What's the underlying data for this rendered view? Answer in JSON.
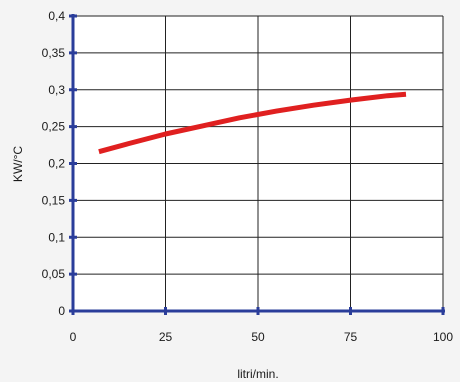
{
  "chart_data": {
    "type": "line",
    "title": "",
    "xlabel": "litri/min.",
    "ylabel": "KW/°C",
    "xlim": [
      0,
      100
    ],
    "ylim": [
      0,
      0.4
    ],
    "x_ticks": [
      0,
      25,
      50,
      75,
      100
    ],
    "x_tick_labels": [
      "0",
      "25",
      "50",
      "75",
      "100"
    ],
    "y_ticks": [
      0,
      0.05,
      0.1,
      0.15,
      0.2,
      0.25,
      0.3,
      0.35,
      0.4
    ],
    "y_tick_labels": [
      "0",
      "0,05",
      "0,1",
      "0,15",
      "0,2",
      "0,25",
      "0,3",
      "0,35",
      "0,4"
    ],
    "grid": true,
    "legend": "none",
    "series": [
      {
        "color": "#e02020",
        "x": [
          7,
          15,
          25,
          35,
          45,
          55,
          65,
          75,
          85,
          90
        ],
        "y": [
          0.216,
          0.227,
          0.24,
          0.251,
          0.262,
          0.271,
          0.279,
          0.286,
          0.292,
          0.294
        ]
      }
    ],
    "colors": {
      "background": "#f4f4f4",
      "plot_area": "#ffffff",
      "axis": "#2a3d9a",
      "grid": "#222222"
    }
  }
}
